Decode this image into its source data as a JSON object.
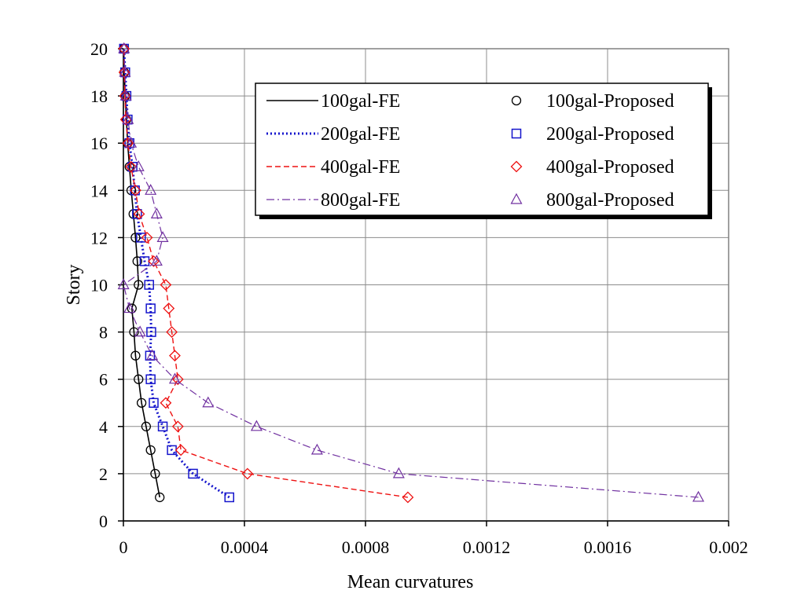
{
  "chart_data": {
    "type": "line",
    "title": "",
    "xlabel": "Mean curvatures",
    "ylabel": "Story",
    "xlim": [
      0,
      0.002
    ],
    "ylim": [
      0,
      20
    ],
    "xticks": [
      0,
      0.0004,
      0.0008,
      0.0012,
      0.0016,
      0.002
    ],
    "xtick_labels": [
      "0",
      "0.0004",
      "0.0008",
      "0.0012",
      "0.0016",
      "0.002"
    ],
    "yticks": [
      0,
      2,
      4,
      6,
      8,
      10,
      12,
      14,
      16,
      18,
      20
    ],
    "ytick_labels": [
      "0",
      "2",
      "4",
      "6",
      "8",
      "10",
      "12",
      "14",
      "16",
      "18",
      "20"
    ],
    "grid": true,
    "legend_position": "top-right",
    "stories": [
      1,
      2,
      3,
      4,
      5,
      6,
      7,
      8,
      9,
      10,
      11,
      12,
      13,
      14,
      15,
      16,
      17,
      18,
      19,
      20
    ],
    "series": [
      {
        "name": "100gal-FE",
        "kind": "line",
        "color": "#000000",
        "dash": "solid",
        "curvature": [
          0.00012,
          0.000105,
          9e-05,
          7.5e-05,
          6e-05,
          5e-05,
          4e-05,
          3.5e-05,
          2.8e-05,
          5e-05,
          4.6e-05,
          4e-05,
          3.3e-05,
          2.6e-05,
          2e-05,
          1.4e-05,
          1e-05,
          6e-06,
          3e-06,
          1e-06
        ]
      },
      {
        "name": "100gal-Proposed",
        "kind": "marker",
        "marker": "circle",
        "color": "#000000",
        "curvature": [
          0.00012,
          0.000105,
          9e-05,
          7.5e-05,
          6e-05,
          5e-05,
          4e-05,
          3.5e-05,
          2.8e-05,
          5e-05,
          4.6e-05,
          4e-05,
          3.3e-05,
          2.6e-05,
          2e-05,
          1.4e-05,
          1e-05,
          6e-06,
          3e-06,
          1e-06
        ]
      },
      {
        "name": "200gal-FE",
        "kind": "line",
        "color": "#1515cc",
        "dash": "dot",
        "curvature": [
          0.00035,
          0.00023,
          0.00016,
          0.00013,
          0.0001,
          9e-05,
          8.8e-05,
          9.2e-05,
          9e-05,
          8.5e-05,
          7e-05,
          5.8e-05,
          4.5e-05,
          3.8e-05,
          3e-05,
          2e-05,
          1.4e-05,
          1e-05,
          6e-06,
          2e-06
        ]
      },
      {
        "name": "200gal-Proposed",
        "kind": "marker",
        "marker": "square",
        "color": "#1515cc",
        "curvature": [
          0.00035,
          0.00023,
          0.00016,
          0.00013,
          0.0001,
          9e-05,
          8.8e-05,
          9.2e-05,
          9e-05,
          8.5e-05,
          7e-05,
          5.8e-05,
          4.5e-05,
          3.8e-05,
          3e-05,
          2e-05,
          1.4e-05,
          1e-05,
          6e-06,
          2e-06
        ]
      },
      {
        "name": "400gal-FE",
        "kind": "line",
        "color": "#ee1111",
        "dash": "dash",
        "curvature": [
          0.00094,
          0.00041,
          0.00019,
          0.00018,
          0.00014,
          0.00018,
          0.00017,
          0.00016,
          0.00015,
          0.00014,
          0.0001,
          7.8e-05,
          5.2e-05,
          4e-05,
          2.5e-05,
          1.5e-05,
          8e-06,
          5e-06,
          3e-06,
          2e-06
        ]
      },
      {
        "name": "400gal-Proposed",
        "kind": "marker",
        "marker": "diamond",
        "color": "#ee1111",
        "curvature": [
          0.00094,
          0.00041,
          0.00019,
          0.00018,
          0.00014,
          0.00018,
          0.00017,
          0.00016,
          0.00015,
          0.00014,
          0.0001,
          7.8e-05,
          5.2e-05,
          4e-05,
          2.5e-05,
          1.5e-05,
          8e-06,
          5e-06,
          3e-06,
          2e-06
        ]
      },
      {
        "name": "800gal-FE",
        "kind": "line",
        "color": "#7030a0",
        "dash": "dashdot",
        "curvature": [
          0.0019,
          0.00091,
          0.00064,
          0.00044,
          0.00028,
          0.00017,
          9.5e-05,
          5.5e-05,
          2e-05,
          5e-07,
          0.00011,
          0.00013,
          0.00011,
          9e-05,
          5e-05,
          2.5e-05,
          1.5e-05,
          8e-06,
          5e-06,
          2e-06
        ]
      },
      {
        "name": "800gal-Proposed",
        "kind": "marker",
        "marker": "triangle",
        "color": "#7030a0",
        "curvature": [
          0.0019,
          0.00091,
          0.00064,
          0.00044,
          0.00028,
          0.00017,
          9.5e-05,
          5.5e-05,
          2e-05,
          5e-07,
          0.00011,
          0.00013,
          0.00011,
          9e-05,
          5e-05,
          2.5e-05,
          1.5e-05,
          8e-06,
          5e-06,
          2e-06
        ]
      }
    ],
    "legend": [
      {
        "label": "100gal-FE",
        "series": 0
      },
      {
        "label": "200gal-FE",
        "series": 2
      },
      {
        "label": "400gal-FE",
        "series": 4
      },
      {
        "label": "800gal-FE",
        "series": 6
      },
      {
        "label": "100gal-Proposed",
        "series": 1
      },
      {
        "label": "200gal-Proposed",
        "series": 3
      },
      {
        "label": "400gal-Proposed",
        "series": 5
      },
      {
        "label": "800gal-Proposed",
        "series": 7
      }
    ]
  }
}
